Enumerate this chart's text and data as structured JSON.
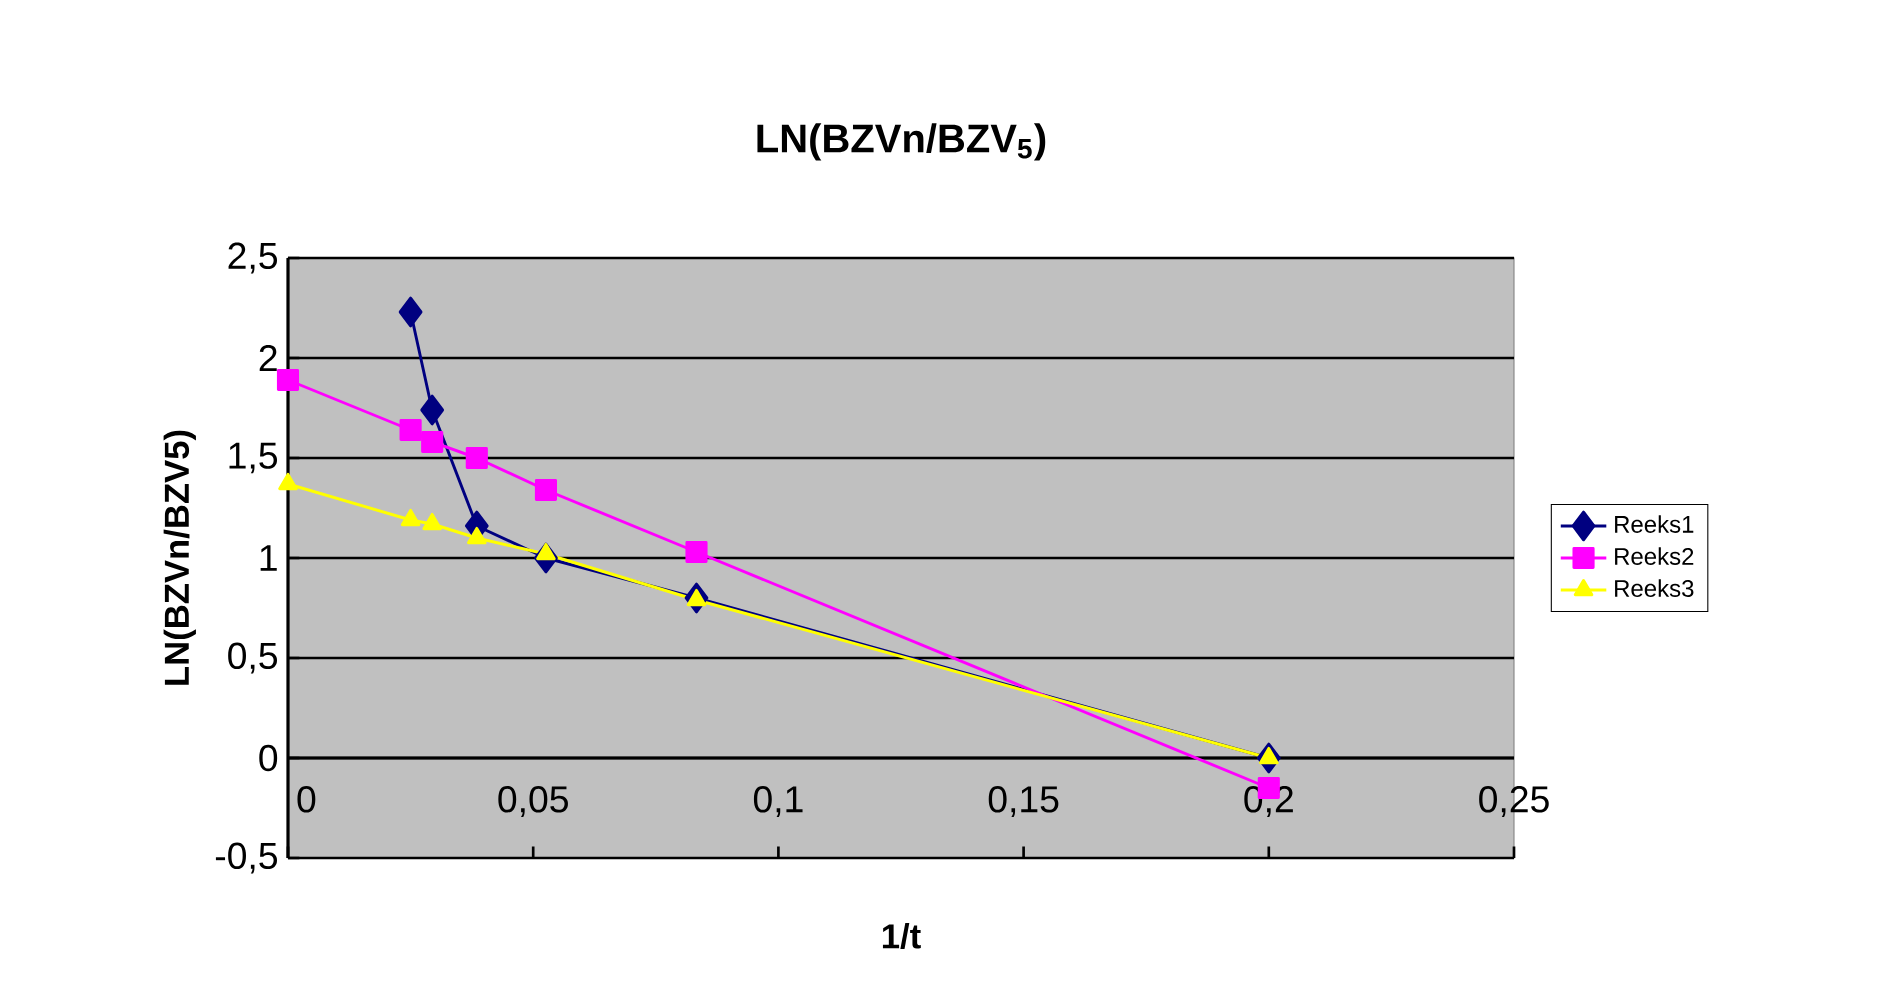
{
  "chart_data": {
    "type": "line",
    "title": "LN(BZVn/BZV$_{5}$)",
    "xlabel": "1/t",
    "ylabel": "LN(BZVn/BZV5)",
    "xlim": [
      0,
      0.25
    ],
    "ylim": [
      -0.5,
      2.5
    ],
    "xticks": [
      {
        "value": 0,
        "label": "0"
      },
      {
        "value": 0.05,
        "label": "0,05"
      },
      {
        "value": 0.1,
        "label": "0,1"
      },
      {
        "value": 0.15,
        "label": "0,15"
      },
      {
        "value": 0.2,
        "label": "0,2"
      },
      {
        "value": 0.25,
        "label": "0,25"
      }
    ],
    "yticks": [
      {
        "value": -0.5,
        "label": "-0,5"
      },
      {
        "value": 0,
        "label": "0"
      },
      {
        "value": 0.5,
        "label": "0,5"
      },
      {
        "value": 1,
        "label": "1"
      },
      {
        "value": 1.5,
        "label": "1,5"
      },
      {
        "value": 2,
        "label": "2"
      },
      {
        "value": 2.5,
        "label": "2,5"
      }
    ],
    "grid": "y",
    "legend": "right",
    "series": [
      {
        "name": "Reeks1",
        "color": "#000080",
        "marker": "diamond",
        "x": [
          0.025,
          0.0294,
          0.0385,
          0.0526,
          0.0833,
          0.2
        ],
        "values": [
          2.23,
          1.74,
          1.16,
          1.0,
          0.8,
          0.0
        ]
      },
      {
        "name": "Reeks2",
        "color": "#ff00ff",
        "marker": "square",
        "x": [
          0,
          0.025,
          0.0294,
          0.0385,
          0.0526,
          0.0833,
          0.2
        ],
        "values": [
          1.89,
          1.64,
          1.58,
          1.5,
          1.34,
          1.03,
          -0.15
        ]
      },
      {
        "name": "Reeks3",
        "color": "#ffff00",
        "marker": "triangle",
        "x": [
          0,
          0.025,
          0.0294,
          0.0385,
          0.0526,
          0.0833,
          0.2
        ],
        "values": [
          1.37,
          1.19,
          1.17,
          1.1,
          1.02,
          0.79,
          0.0
        ]
      }
    ]
  }
}
